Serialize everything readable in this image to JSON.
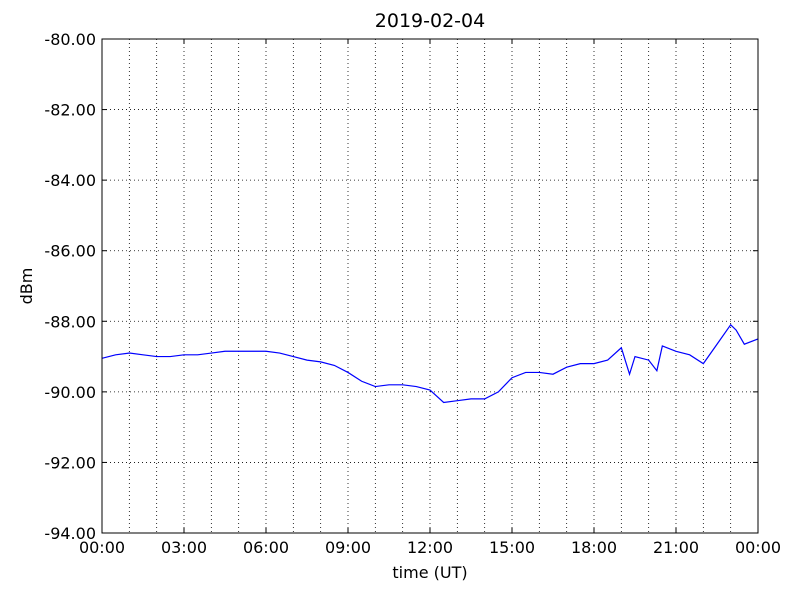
{
  "chart_data": {
    "type": "line",
    "title": "2019-02-04",
    "xlabel": "time (UT)",
    "ylabel": "dBm",
    "x": [
      0,
      0.5,
      1,
      1.5,
      2,
      2.5,
      3,
      3.5,
      4,
      4.5,
      5,
      5.5,
      6,
      6.5,
      7,
      7.5,
      8,
      8.5,
      9,
      9.5,
      10,
      10.5,
      11,
      11.5,
      12,
      12.5,
      13,
      13.5,
      14,
      14.5,
      15,
      15.5,
      16,
      16.5,
      17,
      17.5,
      18,
      18.5,
      19,
      19.3,
      19.5,
      20,
      20.3,
      20.5,
      21,
      21.5,
      22,
      22.5,
      23,
      23.2,
      23.5,
      24
    ],
    "series": [
      {
        "color": "#0000ff",
        "values": [
          -89.05,
          -88.95,
          -88.9,
          -88.95,
          -89.0,
          -89.0,
          -88.95,
          -88.95,
          -88.9,
          -88.85,
          -88.85,
          -88.85,
          -88.85,
          -88.9,
          -89.0,
          -89.1,
          -89.15,
          -89.25,
          -89.45,
          -89.7,
          -89.85,
          -89.8,
          -89.8,
          -89.85,
          -89.95,
          -90.3,
          -90.25,
          -90.2,
          -90.2,
          -90.0,
          -89.6,
          -89.45,
          -89.45,
          -89.5,
          -89.3,
          -89.2,
          -89.2,
          -89.1,
          -88.75,
          -89.5,
          -89.0,
          -89.1,
          -89.4,
          -88.7,
          -88.85,
          -88.95,
          -89.2,
          -88.65,
          -88.1,
          -88.25,
          -88.65,
          -88.5
        ]
      }
    ],
    "xlim": [
      0,
      24
    ],
    "xticks": [
      {
        "value": 0,
        "label": "00:00"
      },
      {
        "value": 3,
        "label": "03:00"
      },
      {
        "value": 6,
        "label": "06:00"
      },
      {
        "value": 9,
        "label": "09:00"
      },
      {
        "value": 12,
        "label": "12:00"
      },
      {
        "value": 15,
        "label": "15:00"
      },
      {
        "value": 18,
        "label": "18:00"
      },
      {
        "value": 21,
        "label": "21:00"
      },
      {
        "value": 24,
        "label": "00:00"
      }
    ],
    "minor_xticks": [
      1,
      2,
      4,
      5,
      7,
      8,
      10,
      11,
      13,
      14,
      16,
      17,
      19,
      20,
      22,
      23
    ],
    "ylim": [
      -94,
      -80
    ],
    "yticks": [
      {
        "value": -94,
        "label": "-94.00"
      },
      {
        "value": -92,
        "label": "-92.00"
      },
      {
        "value": -90,
        "label": "-90.00"
      },
      {
        "value": -88,
        "label": "-88.00"
      },
      {
        "value": -86,
        "label": "-86.00"
      },
      {
        "value": -84,
        "label": "-84.00"
      },
      {
        "value": -82,
        "label": "-82.00"
      },
      {
        "value": -80,
        "label": "-80.00"
      }
    ],
    "grid": true
  }
}
